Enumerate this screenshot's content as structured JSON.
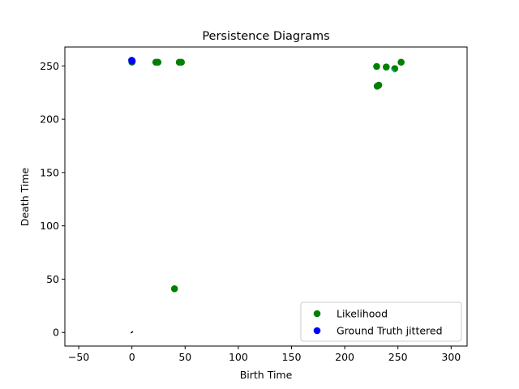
{
  "chart_data": {
    "type": "scatter",
    "title": "Persistence Diagrams",
    "xlabel": "Birth Time",
    "ylabel": "Death Time",
    "xlim": [
      -63,
      315
    ],
    "ylim": [
      -12.75,
      267.75
    ],
    "xticks": [
      -50,
      0,
      50,
      100,
      150,
      200,
      250,
      300
    ],
    "yticks": [
      0,
      50,
      100,
      150,
      200,
      250
    ],
    "legend_position": "lower right",
    "series": [
      {
        "name": "Likelihood",
        "color": "#008000",
        "points": [
          [
            0,
            253.6
          ],
          [
            0,
            254.2
          ],
          [
            22.5,
            253.5
          ],
          [
            24.5,
            253.5
          ],
          [
            44.5,
            253.5
          ],
          [
            46.5,
            253.5
          ],
          [
            40,
            41
          ],
          [
            230,
            249.5
          ],
          [
            239,
            249
          ],
          [
            247,
            247.5
          ],
          [
            253,
            253.5
          ],
          [
            230.5,
            231
          ],
          [
            232,
            232
          ]
        ]
      },
      {
        "name": "Ground Truth jittered",
        "color": "#0000ff",
        "points": [
          [
            0,
            255
          ],
          [
            0.3,
            254.6
          ],
          [
            -0.2,
            255.3
          ]
        ]
      }
    ],
    "extra_segments": [
      {
        "color": "#000000",
        "from": [
          -1,
          -0.5
        ],
        "to": [
          1,
          0.8
        ]
      },
      {
        "color": "#00bfbf",
        "from": [
          244,
          247
        ],
        "to": [
          247,
          244
        ]
      }
    ]
  }
}
